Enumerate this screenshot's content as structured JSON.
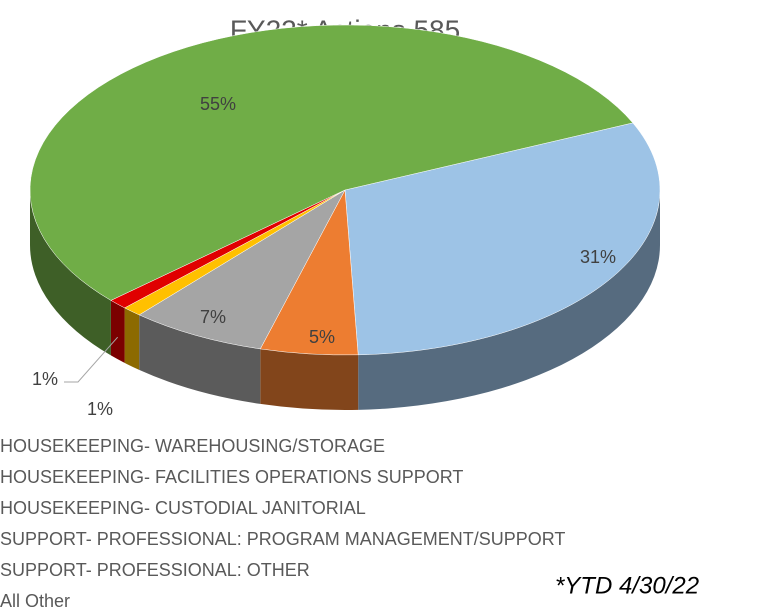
{
  "chart_data": {
    "type": "pie",
    "title": "FY22* Actions 585",
    "annotation": "*YTD 4/30/22",
    "categories": [
      "HOUSEKEEPING- WAREHOUSING/STORAGE",
      "HOUSEKEEPING- FACILITIES OPERATIONS SUPPORT",
      "HOUSEKEEPING- CUSTODIAL JANITORIAL",
      "SUPPORT- PROFESSIONAL: PROGRAM MANAGEMENT/SUPPORT",
      "SUPPORT- PROFESSIONAL: OTHER",
      "All Other"
    ],
    "values": [
      31,
      5,
      7,
      1,
      1,
      55
    ],
    "value_labels": [
      "31%",
      "5%",
      "7%",
      "1%",
      "1%",
      "55%"
    ],
    "colors": [
      "#9dc3e6",
      "#ed7d31",
      "#a5a5a5",
      "#ffc000",
      "#e00000",
      "#70ad47"
    ],
    "legend": "bottom"
  }
}
